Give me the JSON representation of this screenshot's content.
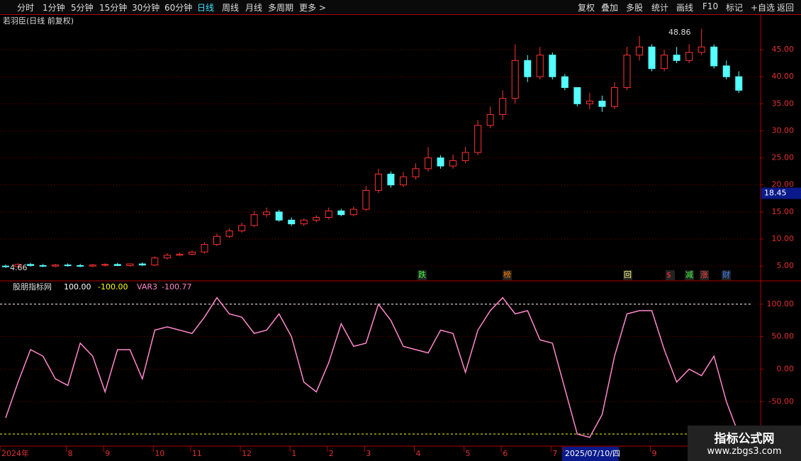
{
  "toolbar": {
    "left": [
      "分时",
      "1分钟",
      "5分钟",
      "15分钟",
      "30分钟",
      "60分钟",
      "日线",
      "周线",
      "月线",
      "多周期",
      "更多 >"
    ],
    "right": [
      "复权",
      "叠加",
      "多股",
      "统计",
      "画线",
      "F10",
      "标记",
      "+自选",
      "返回"
    ]
  },
  "chart_data": [
    {
      "type": "candlestick",
      "title": "若羽臣(日线 前复权)",
      "up_color": "#ff3232",
      "down_color": "#54ffff",
      "categories": [
        "2024年",
        null,
        null,
        null,
        null,
        "8",
        null,
        null,
        "9",
        null,
        null,
        null,
        "10",
        null,
        null,
        "11",
        null,
        null,
        null,
        "12",
        null,
        null,
        null,
        "1",
        null,
        null,
        "2",
        null,
        null,
        "3",
        null,
        null,
        null,
        "4",
        null,
        null,
        null,
        "5",
        null,
        null,
        "6",
        null,
        null,
        null,
        "7",
        "2025/07/10/四",
        null,
        null,
        null,
        null,
        null,
        null,
        "9",
        null,
        null,
        null,
        null,
        null,
        null,
        null
      ],
      "open": [
        5.0,
        4.9,
        5.3,
        5.1,
        5.0,
        5.2,
        5.1,
        5.0,
        5.2,
        5.3,
        5.1,
        5.4,
        5.2,
        6.5,
        7.0,
        7.2,
        7.6,
        9.0,
        10.5,
        11.5,
        12.5,
        14.5,
        15.0,
        13.5,
        12.8,
        13.5,
        14.0,
        15.2,
        14.5,
        15.5,
        19.0,
        22.0,
        20.0,
        21.5,
        23.0,
        25.0,
        23.5,
        24.5,
        26.0,
        31.0,
        33.0,
        36.0,
        43.0,
        40.0,
        44.0,
        40.0,
        38.0,
        35.0,
        35.5,
        34.5,
        38.0,
        44.0,
        45.5,
        41.5,
        44.0,
        43.0,
        44.5,
        45.5,
        42.0,
        40.0
      ],
      "high": [
        5.3,
        5.5,
        5.6,
        5.4,
        5.4,
        5.5,
        5.4,
        5.4,
        5.5,
        5.6,
        5.5,
        5.7,
        6.8,
        7.4,
        7.5,
        7.9,
        9.4,
        11.0,
        12.0,
        13.0,
        15.2,
        15.8,
        15.4,
        14.0,
        13.8,
        14.4,
        15.8,
        15.6,
        16.0,
        19.8,
        23.0,
        22.5,
        22.4,
        24.0,
        27.0,
        25.5,
        25.6,
        27.0,
        32.0,
        34.5,
        37.5,
        46.0,
        44.0,
        45.5,
        44.5,
        40.5,
        38.0,
        37.0,
        36.5,
        39.0,
        45.5,
        47.5,
        46.0,
        45.0,
        45.5,
        46.0,
        48.86,
        46.0,
        43.0,
        41.0
      ],
      "low": [
        4.66,
        4.7,
        4.9,
        4.8,
        4.8,
        4.9,
        4.8,
        4.8,
        4.9,
        5.0,
        4.9,
        5.0,
        5.0,
        6.2,
        6.8,
        7.0,
        7.3,
        8.7,
        10.2,
        11.2,
        12.2,
        14.0,
        13.2,
        12.4,
        12.4,
        13.1,
        13.6,
        14.2,
        14.2,
        15.2,
        18.5,
        19.5,
        19.6,
        21.0,
        22.5,
        23.0,
        23.0,
        24.0,
        25.5,
        30.5,
        32.0,
        35.0,
        39.0,
        39.5,
        39.5,
        37.5,
        34.5,
        34.0,
        33.5,
        34.0,
        37.5,
        43.0,
        41.0,
        41.0,
        42.5,
        42.5,
        44.0,
        41.5,
        39.5,
        37.0
      ],
      "close": [
        4.9,
        5.3,
        5.1,
        5.0,
        5.2,
        5.1,
        5.0,
        5.2,
        5.3,
        5.1,
        5.4,
        5.2,
        6.5,
        7.0,
        7.2,
        7.6,
        9.0,
        10.5,
        11.5,
        12.5,
        14.5,
        15.0,
        13.5,
        12.8,
        13.5,
        14.0,
        15.2,
        14.5,
        15.5,
        19.0,
        22.0,
        20.0,
        21.5,
        23.0,
        25.0,
        23.5,
        24.5,
        26.0,
        31.0,
        33.0,
        36.0,
        43.0,
        40.0,
        44.0,
        40.0,
        38.0,
        35.0,
        35.5,
        34.5,
        38.0,
        44.0,
        45.5,
        41.5,
        44.0,
        43.0,
        44.5,
        45.5,
        42.0,
        40.0,
        37.5
      ],
      "ylim": [
        2.4,
        49.2
      ],
      "yticks": [
        {
          "value": 5,
          "label": "5.00"
        },
        {
          "value": 10,
          "label": "10.00"
        },
        {
          "value": 15,
          "label": "15.00"
        },
        {
          "value": 20,
          "label": "20.00"
        },
        {
          "value": 25,
          "label": "25.00"
        },
        {
          "value": 30,
          "label": "30.00"
        },
        {
          "value": 35,
          "label": "35.00"
        },
        {
          "value": 40,
          "label": "40.00"
        },
        {
          "value": 45,
          "label": "45.00"
        }
      ],
      "cursor_value": 18.45,
      "events": [
        "跌",
        "榜",
        "回",
        "$",
        "减",
        "涨",
        "财"
      ],
      "grid": true
    },
    {
      "type": "line",
      "title": "股朋指标网",
      "reference_lines": [
        {
          "value": 100,
          "label": "100.00",
          "color": "#ffffff"
        },
        {
          "value": -100,
          "label": "-100.00",
          "color": "#ffff00"
        }
      ],
      "series": [
        {
          "name": "VAR3",
          "color": "#ff88cc",
          "values": [
            -75,
            -20,
            30,
            20,
            -15,
            -25,
            40,
            20,
            -35,
            30,
            30,
            -15,
            60,
            65,
            60,
            55,
            80,
            110,
            85,
            80,
            55,
            60,
            85,
            50,
            -20,
            -35,
            10,
            70,
            35,
            40,
            100,
            75,
            35,
            30,
            25,
            60,
            55,
            -5,
            60,
            90,
            110,
            85,
            90,
            45,
            40,
            -30,
            -100,
            -105,
            -70,
            20,
            85,
            90,
            90,
            30,
            -20,
            0,
            -10,
            20,
            -50,
            -100.77
          ]
        }
      ],
      "ylim": [
        -117.4,
        133.7
      ],
      "yticks": [
        {
          "value": 100,
          "label": "100.00"
        },
        {
          "value": 50,
          "label": "50.00"
        },
        {
          "value": 0,
          "label": "0.00"
        },
        {
          "value": -50,
          "label": "-50.00"
        }
      ],
      "grid": true
    }
  ],
  "watermark": {
    "title": "指标公式网",
    "url": "www.zbgs3.com"
  }
}
